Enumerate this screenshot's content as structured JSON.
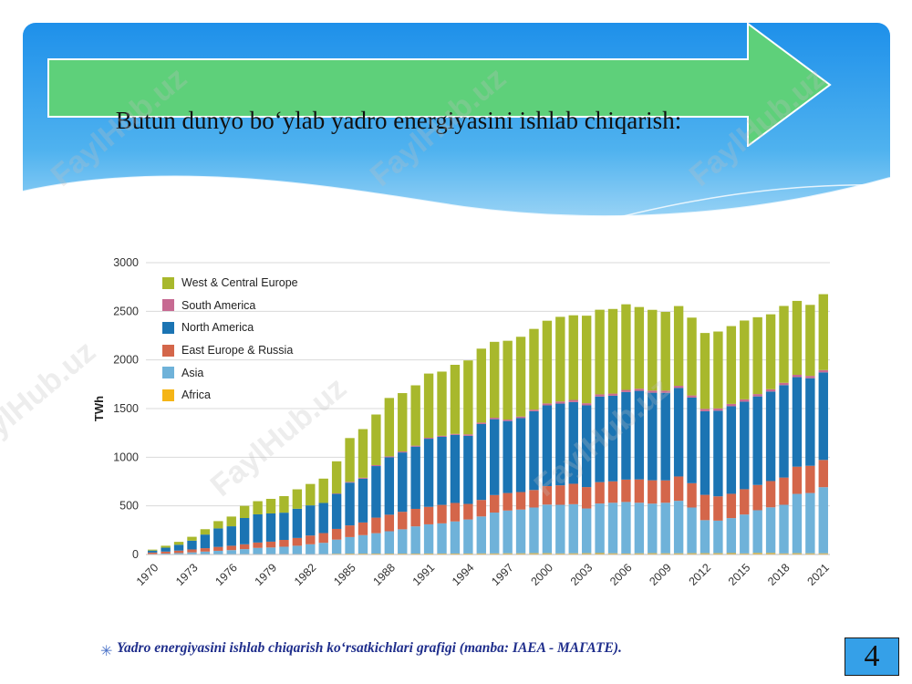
{
  "slide": {
    "title": "Butun dunyo bo‘ylab yadro energiyasini ishlab chiqarish:",
    "caption": "Yadro energiyasini ishlab chiqarish ko‘rsatkichlari grafigi (manba: IAEA - МАГАТЕ).",
    "caption_bullet": "✳",
    "page_number": "4",
    "watermark": "FaylHub.uz",
    "colors": {
      "header_blue": "#2196f3",
      "arrow_green": "#5ed07a",
      "page_box": "#35a0e8",
      "caption": "#1f2e8c"
    }
  },
  "chart_data": {
    "type": "bar",
    "stacked": true,
    "ylabel": "TWh",
    "ylim": [
      0,
      3000
    ],
    "yticks": [
      0,
      500,
      1000,
      1500,
      2000,
      2500,
      3000
    ],
    "grid": true,
    "legend_position": "top-left",
    "categories": [
      1970,
      1971,
      1972,
      1973,
      1974,
      1975,
      1976,
      1977,
      1978,
      1979,
      1980,
      1981,
      1982,
      1983,
      1984,
      1985,
      1986,
      1987,
      1988,
      1989,
      1990,
      1991,
      1992,
      1993,
      1994,
      1995,
      1996,
      1997,
      1998,
      1999,
      2000,
      2001,
      2002,
      2003,
      2004,
      2005,
      2006,
      2007,
      2008,
      2009,
      2010,
      2011,
      2012,
      2013,
      2014,
      2015,
      2016,
      2017,
      2018,
      2019,
      2020,
      2021
    ],
    "xtick_labels": [
      "1970",
      "1973",
      "1976",
      "1979",
      "1982",
      "1985",
      "1988",
      "1991",
      "1994",
      "1997",
      "2000",
      "2003",
      "2006",
      "2009",
      "2012",
      "2015",
      "2018",
      "2021"
    ],
    "series": [
      {
        "name": "Africa",
        "color": "#f5b516",
        "values": [
          0,
          0,
          0,
          0,
          0,
          0,
          0,
          0,
          0,
          0,
          0,
          0,
          0,
          0,
          8,
          9,
          9,
          9,
          9,
          9,
          9,
          10,
          10,
          10,
          10,
          11,
          11,
          12,
          12,
          13,
          13,
          11,
          12,
          13,
          14,
          12,
          10,
          12,
          13,
          12,
          12,
          13,
          13,
          13,
          14,
          11,
          15,
          15,
          11,
          13,
          12,
          12
        ]
      },
      {
        "name": "Asia",
        "color": "#6fb2d9",
        "values": [
          5,
          10,
          15,
          22,
          30,
          38,
          45,
          55,
          68,
          72,
          80,
          90,
          105,
          120,
          145,
          170,
          190,
          210,
          230,
          250,
          280,
          300,
          310,
          330,
          350,
          380,
          420,
          440,
          450,
          470,
          500,
          500,
          505,
          460,
          510,
          520,
          530,
          520,
          510,
          520,
          540,
          470,
          340,
          335,
          360,
          400,
          440,
          470,
          500,
          610,
          620,
          680
        ]
      },
      {
        "name": "East Europe & Russia",
        "color": "#d4664a",
        "values": [
          15,
          20,
          25,
          30,
          35,
          40,
          45,
          50,
          55,
          60,
          70,
          80,
          90,
          100,
          110,
          120,
          130,
          160,
          170,
          180,
          180,
          180,
          190,
          190,
          160,
          170,
          180,
          180,
          180,
          180,
          190,
          200,
          210,
          220,
          220,
          220,
          230,
          240,
          240,
          230,
          250,
          250,
          260,
          250,
          250,
          260,
          260,
          270,
          280,
          280,
          280,
          280
        ]
      },
      {
        "name": "North America",
        "color": "#1b74b3",
        "values": [
          20,
          40,
          60,
          90,
          140,
          190,
          200,
          270,
          290,
          290,
          280,
          300,
          310,
          310,
          360,
          440,
          450,
          530,
          590,
          610,
          640,
          700,
          700,
          700,
          700,
          780,
          780,
          740,
          760,
          810,
          830,
          840,
          840,
          840,
          880,
          880,
          900,
          910,
          900,
          900,
          910,
          880,
          860,
          880,
          900,
          900,
          910,
          920,
          950,
          920,
          900,
          900
        ]
      },
      {
        "name": "South America",
        "color": "#c76a92",
        "values": [
          0,
          0,
          0,
          0,
          0,
          0,
          0,
          0,
          0,
          0,
          0,
          0,
          0,
          0,
          5,
          8,
          10,
          10,
          10,
          10,
          10,
          10,
          10,
          10,
          15,
          15,
          15,
          15,
          16,
          16,
          20,
          22,
          22,
          22,
          22,
          22,
          22,
          22,
          22,
          22,
          22,
          22,
          24,
          24,
          24,
          24,
          24,
          24,
          24,
          24,
          24,
          24
        ]
      },
      {
        "name": "West & Central Europe",
        "color": "#a8b82c",
        "values": [
          10,
          20,
          30,
          40,
          55,
          75,
          100,
          125,
          135,
          150,
          170,
          200,
          220,
          250,
          330,
          450,
          500,
          520,
          600,
          600,
          620,
          660,
          660,
          710,
          760,
          760,
          780,
          810,
          820,
          830,
          850,
          870,
          870,
          900,
          870,
          870,
          880,
          840,
          830,
          810,
          820,
          800,
          780,
          790,
          800,
          810,
          790,
          770,
          790,
          760,
          730,
          780
        ]
      }
    ]
  }
}
